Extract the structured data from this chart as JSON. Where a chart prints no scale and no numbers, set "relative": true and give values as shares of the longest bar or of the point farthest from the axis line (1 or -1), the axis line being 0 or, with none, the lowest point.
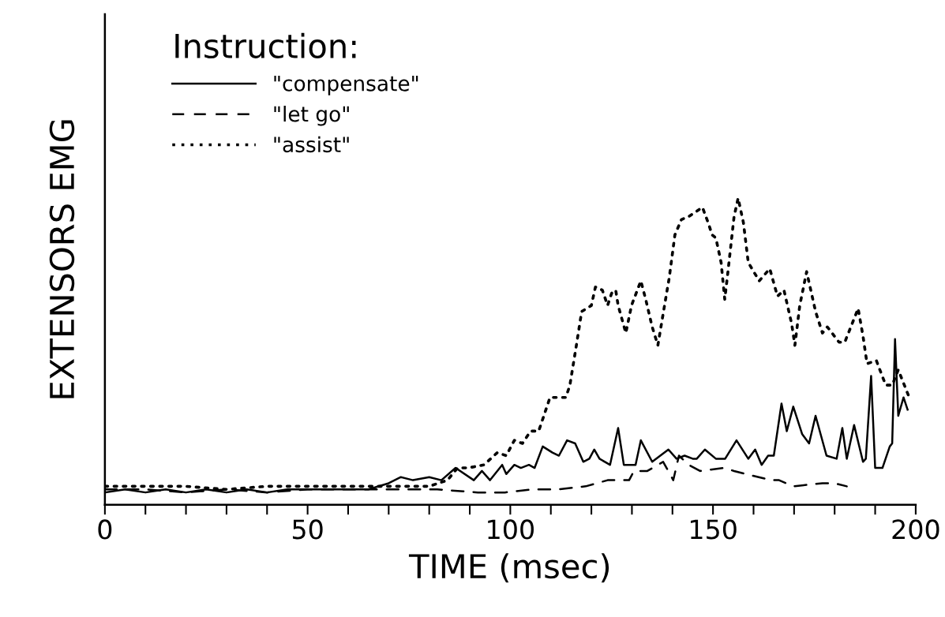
{
  "chart_data": {
    "type": "line",
    "xlabel": "TIME (msec)",
    "ylabel": "EXTENSORS EMG",
    "legend_title": "Instruction:",
    "relative": true,
    "legend": "top left",
    "grid": false,
    "marker": "none",
    "xlim": [
      0,
      200
    ],
    "xticks": [
      0,
      {
        "value": 10,
        "label": null
      },
      {
        "value": 20,
        "label": null
      },
      {
        "value": 30,
        "label": null
      },
      {
        "value": 40,
        "label": null
      },
      50,
      {
        "value": 60,
        "label": null
      },
      {
        "value": 70,
        "label": null
      },
      {
        "value": 80,
        "label": null
      },
      {
        "value": 90,
        "label": null
      },
      100,
      {
        "value": 110,
        "label": null
      },
      {
        "value": 120,
        "label": null
      },
      {
        "value": 130,
        "label": null
      },
      {
        "value": 140,
        "label": null
      },
      150,
      {
        "value": 160,
        "label": null
      },
      {
        "value": 170,
        "label": null
      },
      {
        "value": 180,
        "label": null
      },
      {
        "value": 190,
        "label": null
      },
      200
    ],
    "series": [
      {
        "name": "\"compensate\"",
        "color": "#000000",
        "line_style": "solid",
        "x": [
          0,
          5,
          10,
          15,
          20,
          25,
          30,
          35,
          40,
          45,
          50,
          55,
          60,
          65,
          70,
          73,
          76,
          80,
          83,
          86.5,
          91,
          93,
          95,
          98,
          99,
          101,
          102.6,
          104.6,
          106,
          108,
          110.4,
          112,
          114,
          116,
          118,
          119.5,
          120.7,
          122,
          124.6,
          126.6,
          128,
          130.9,
          132.2,
          135,
          137,
          139,
          141,
          143,
          145,
          146,
          148,
          150.7,
          153,
          155.8,
          158.7,
          160.4,
          162,
          163.6,
          165,
          166.9,
          168.2,
          169.8,
          172,
          173.7,
          175.3,
          178,
          180.5,
          181.9,
          183,
          184.8,
          187,
          187.7,
          189,
          190,
          191.8,
          193.6,
          194.2,
          194.9,
          195.7,
          197,
          198
        ],
        "values": [
          0.04,
          0.05,
          0.04,
          0.05,
          0.04,
          0.05,
          0.04,
          0.05,
          0.04,
          0.05,
          0.05,
          0.05,
          0.05,
          0.05,
          0.07,
          0.09,
          0.08,
          0.09,
          0.08,
          0.12,
          0.08,
          0.11,
          0.08,
          0.13,
          0.1,
          0.13,
          0.12,
          0.13,
          0.12,
          0.19,
          0.17,
          0.16,
          0.21,
          0.2,
          0.14,
          0.15,
          0.18,
          0.15,
          0.13,
          0.25,
          0.13,
          0.13,
          0.21,
          0.14,
          0.16,
          0.18,
          0.15,
          0.16,
          0.15,
          0.15,
          0.18,
          0.15,
          0.15,
          0.21,
          0.15,
          0.18,
          0.13,
          0.16,
          0.16,
          0.33,
          0.24,
          0.32,
          0.23,
          0.2,
          0.29,
          0.16,
          0.15,
          0.25,
          0.15,
          0.26,
          0.14,
          0.15,
          0.42,
          0.12,
          0.12,
          0.19,
          0.2,
          0.54,
          0.29,
          0.35,
          0.31
        ]
      },
      {
        "name": "\"let go\"",
        "color": "#000000",
        "line_style": "dashed",
        "x": [
          0,
          10,
          20,
          30,
          40,
          50,
          60,
          70,
          75,
          82,
          92,
          98.7,
          105.5,
          111.8,
          118.6,
          124,
          129.3,
          130.5,
          133.8,
          137.7,
          140.2,
          141.6,
          144,
          146.8,
          152.7,
          155.2,
          158.1,
          164.4,
          166.3,
          169.8,
          177,
          180,
          183
        ],
        "values": [
          0.05,
          0.05,
          0.04,
          0.05,
          0.04,
          0.05,
          0.05,
          0.05,
          0.05,
          0.05,
          0.04,
          0.04,
          0.05,
          0.05,
          0.06,
          0.08,
          0.08,
          0.11,
          0.11,
          0.14,
          0.08,
          0.16,
          0.13,
          0.11,
          0.12,
          0.11,
          0.1,
          0.08,
          0.08,
          0.06,
          0.07,
          0.07,
          0.06
        ]
      },
      {
        "name": "\"assist\"",
        "color": "#000000",
        "line_style": "dotted",
        "x": [
          0,
          10,
          20,
          30,
          40,
          50,
          60,
          70,
          80,
          84.5,
          87,
          89.6,
          93.5,
          96.8,
          99,
          101,
          103,
          105,
          107,
          109.8,
          113.7,
          114.7,
          116.3,
          117.6,
          120,
          121,
          122.7,
          124,
          125,
          126,
          126.6,
          128.5,
          129.9,
          132.2,
          133.4,
          135,
          136.4,
          138.3,
          139.2,
          140.6,
          142.2,
          144,
          147.4,
          148.8,
          149.8,
          150.7,
          152,
          152.9,
          153.6,
          155.2,
          156.2,
          157.5,
          158.7,
          161.4,
          164,
          165.9,
          167.5,
          169.4,
          170.2,
          171.4,
          173.1,
          175.3,
          177,
          178.2,
          181.1,
          182.5,
          185.8,
          187,
          188,
          190.3,
          192.6,
          194.2,
          195.7,
          197.5,
          198.4
        ],
        "values": [
          0.06,
          0.06,
          0.06,
          0.05,
          0.06,
          0.06,
          0.06,
          0.06,
          0.06,
          0.08,
          0.12,
          0.12,
          0.13,
          0.17,
          0.16,
          0.21,
          0.2,
          0.24,
          0.24,
          0.35,
          0.35,
          0.39,
          0.52,
          0.63,
          0.65,
          0.71,
          0.7,
          0.65,
          0.69,
          0.7,
          0.65,
          0.56,
          0.65,
          0.73,
          0.67,
          0.58,
          0.52,
          0.67,
          0.74,
          0.88,
          0.93,
          0.94,
          0.97,
          0.92,
          0.88,
          0.87,
          0.79,
          0.67,
          0.75,
          0.94,
          1,
          0.92,
          0.79,
          0.73,
          0.77,
          0.68,
          0.7,
          0.59,
          0.52,
          0.65,
          0.76,
          0.63,
          0.56,
          0.58,
          0.53,
          0.53,
          0.64,
          0.55,
          0.46,
          0.47,
          0.39,
          0.39,
          0.44,
          0.38,
          0.35
        ]
      }
    ]
  }
}
